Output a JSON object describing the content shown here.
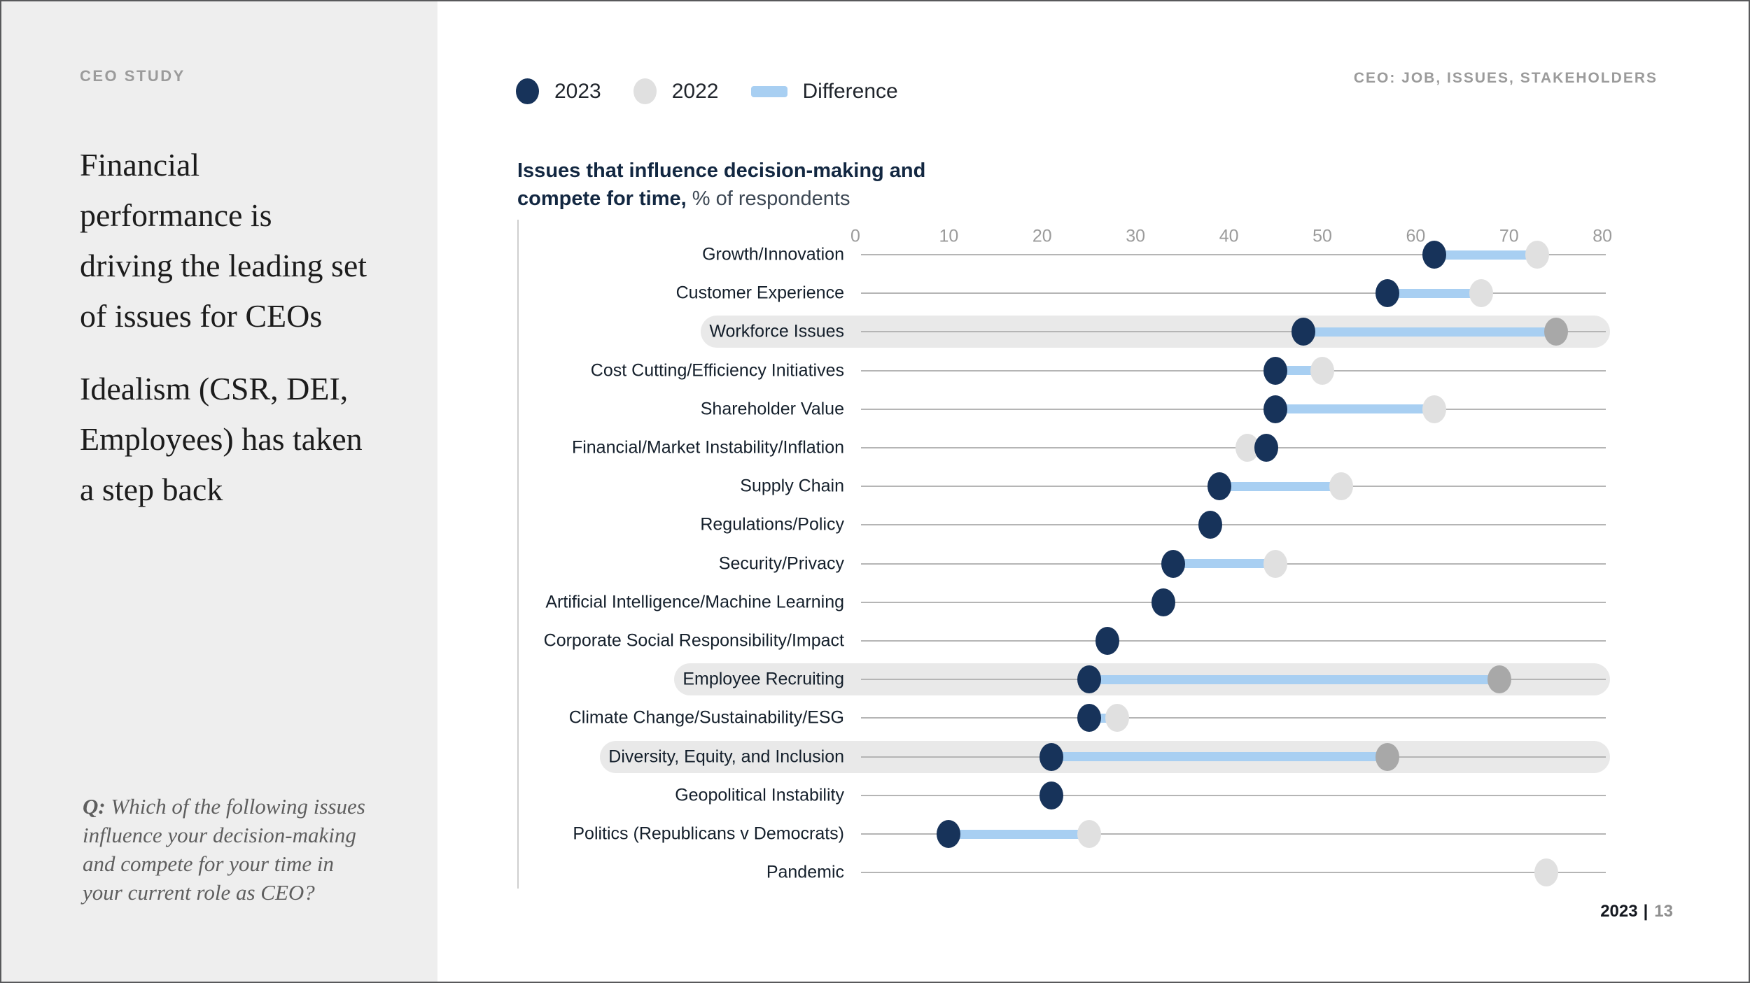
{
  "colors": {
    "left_panel_bg": "#eeeeee",
    "navy_2023": "#17335a",
    "gray_2022": "#e0e0e0",
    "gray_2022_highlight": "#a8a8a8",
    "difference_blue": "#a8cff2",
    "highlight_band": "#e9e9e9",
    "gridline": "#b5b5b5",
    "axis_line": "#cfcfcf",
    "tick_text": "#9b9b9b",
    "eyebrow_text": "#9b9b9b",
    "title_navy": "#122741",
    "footer_page_gray": "#8f8f8f"
  },
  "sidebar": {
    "eyebrow": "CEO STUDY",
    "headline1_lines": [
      "Financial",
      "performance is",
      "driving the leading set",
      "of issues for CEOs"
    ],
    "headline2_lines": [
      "Idealism (CSR, DEI,",
      "Employees) has taken",
      "a step back"
    ],
    "question": {
      "prefix": "Q:",
      "lines": [
        "Which of the following issues",
        "influence your decision-making",
        "and compete for your time in",
        "your current role as CEO?"
      ]
    }
  },
  "header": {
    "right_label": "CEO: JOB, ISSUES, STAKEHOLDERS"
  },
  "legend": {
    "items": [
      {
        "label": "2023",
        "marker": "navy-dot"
      },
      {
        "label": "2022",
        "marker": "gray-dot"
      },
      {
        "label": "Difference",
        "marker": "blue-bar"
      }
    ]
  },
  "chart_header": {
    "title_line1": "Issues that influence decision-making and",
    "title_line2_bold": "compete for time,",
    "title_line2_rest": " % of respondents"
  },
  "chart_data": {
    "type": "scatter",
    "variant": "dumbbell-dot-plot",
    "title": "Issues that influence decision-making and compete for time,",
    "subtitle": "% of respondents",
    "xlim": [
      0,
      80
    ],
    "xticks": [
      0,
      10,
      20,
      30,
      40,
      50,
      60,
      70,
      80
    ],
    "grid": "horizontal-row-lines",
    "legend_position": "top",
    "categories": [
      "Growth/Innovation",
      "Customer Experience",
      "Workforce Issues",
      "Cost Cutting/Efficiency Initiatives",
      "Shareholder Value",
      "Financial/Market Instability/Inflation",
      "Supply Chain",
      "Regulations/Policy",
      "Security/Privacy",
      "Artificial Intelligence/Machine Learning",
      "Corporate Social Responsibility/Impact",
      "Employee Recruiting",
      "Climate Change/Sustainability/ESG",
      "Diversity, Equity, and Inclusion",
      "Geopolitical Instability",
      "Politics (Republicans v Democrats)",
      "Pandemic"
    ],
    "series": [
      {
        "name": "2023",
        "values": [
          62,
          57,
          48,
          45,
          45,
          44,
          39,
          38,
          34,
          33,
          27,
          25,
          25,
          21,
          21,
          10,
          null
        ]
      },
      {
        "name": "2022",
        "values": [
          73,
          67,
          75,
          50,
          62,
          42,
          52,
          null,
          45,
          null,
          null,
          69,
          28,
          57,
          null,
          25,
          74
        ]
      }
    ],
    "highlighted_categories": [
      "Workforce Issues",
      "Employee Recruiting",
      "Diversity, Equity, and Inclusion"
    ]
  },
  "footer": {
    "year": "2023",
    "separator": "|",
    "page": "13"
  }
}
